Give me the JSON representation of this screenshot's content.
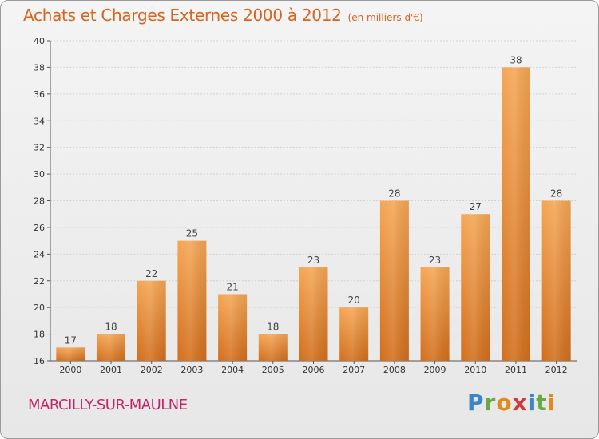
{
  "header": {
    "title": "Achats et Charges Externes 2000 à 2012",
    "subtitle": "(en milliers d'€)"
  },
  "footer": {
    "commune": "MARCILLY-SUR-MAULNE",
    "brand_letters": [
      "P",
      "r",
      "o",
      "x",
      "i",
      "t",
      "i"
    ],
    "brand_colors": [
      "#3a86c8",
      "#6aa843",
      "#e08a1e",
      "#d23a3a",
      "#3a86c8",
      "#6aa843",
      "#e08a1e"
    ]
  },
  "colors": {
    "bar_top": "#f5a654",
    "bar_bottom": "#d26e1c",
    "title": "#d9621e",
    "commune": "#c8226b"
  },
  "chart_data": {
    "type": "bar",
    "title": "Achats et Charges Externes 2000 à 2012",
    "subtitle": "(en milliers d'€)",
    "categories": [
      "2000",
      "2001",
      "2002",
      "2003",
      "2004",
      "2005",
      "2006",
      "2007",
      "2008",
      "2009",
      "2010",
      "2011",
      "2012"
    ],
    "values": [
      17,
      18,
      22,
      25,
      21,
      18,
      23,
      20,
      28,
      23,
      27,
      38,
      28
    ],
    "ylim": [
      16,
      40
    ],
    "yticks": [
      16,
      18,
      20,
      22,
      24,
      26,
      28,
      30,
      32,
      34,
      36,
      38,
      40
    ],
    "grid": true,
    "data_labels": true
  }
}
